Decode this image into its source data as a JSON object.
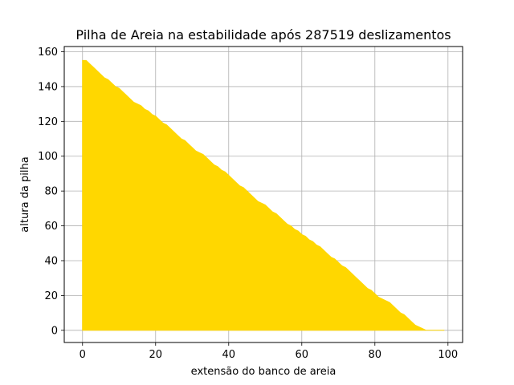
{
  "chart_data": {
    "type": "area",
    "title": "Pilha de Areia na estabilidade após 287519 deslizamentos",
    "xlabel": "extensão do banco de areia",
    "ylabel": "altura da pilha",
    "xlim": [
      -5,
      104
    ],
    "ylim": [
      -7,
      163
    ],
    "xticks": [
      0,
      20,
      40,
      60,
      80,
      100
    ],
    "yticks": [
      0,
      20,
      40,
      60,
      80,
      100,
      120,
      140,
      160
    ],
    "grid": true,
    "fill_color": "#ffd700",
    "series": [
      {
        "x": [
          0,
          1,
          2,
          3,
          4,
          5,
          6,
          7,
          8,
          9,
          10,
          11,
          12,
          13,
          14,
          15,
          16,
          17,
          18,
          19,
          20,
          21,
          22,
          23,
          24,
          25,
          26,
          27,
          28,
          29,
          30,
          31,
          32,
          33,
          34,
          35,
          36,
          37,
          38,
          39,
          40,
          41,
          42,
          43,
          44,
          45,
          46,
          47,
          48,
          49,
          50,
          51,
          52,
          53,
          54,
          55,
          56,
          57,
          58,
          59,
          60,
          61,
          62,
          63,
          64,
          65,
          66,
          67,
          68,
          69,
          70,
          71,
          72,
          73,
          74,
          75,
          76,
          77,
          78,
          79,
          80,
          81,
          82,
          83,
          84,
          85,
          86,
          87,
          88,
          89,
          90,
          91,
          92,
          93,
          94,
          95,
          96,
          97,
          98,
          99
        ],
        "values": [
          155,
          155,
          153,
          151,
          149,
          147,
          145,
          144,
          142,
          140,
          139,
          137,
          135,
          133,
          131,
          130,
          129,
          127,
          126,
          124,
          123,
          121,
          119,
          118,
          116,
          114,
          112,
          110,
          109,
          107,
          105,
          103,
          102,
          101,
          99,
          97,
          95,
          94,
          92,
          91,
          89,
          87,
          85,
          83,
          82,
          80,
          78,
          76,
          74,
          73,
          72,
          70,
          68,
          67,
          65,
          63,
          61,
          60,
          58,
          57,
          55,
          54,
          52,
          51,
          49,
          48,
          46,
          44,
          42,
          41,
          39,
          37,
          36,
          34,
          32,
          30,
          28,
          26,
          24,
          23,
          21,
          19,
          18,
          17,
          16,
          14,
          12,
          10,
          9,
          7,
          5,
          3,
          2,
          1,
          0,
          0,
          0,
          0,
          0,
          0
        ]
      }
    ]
  }
}
